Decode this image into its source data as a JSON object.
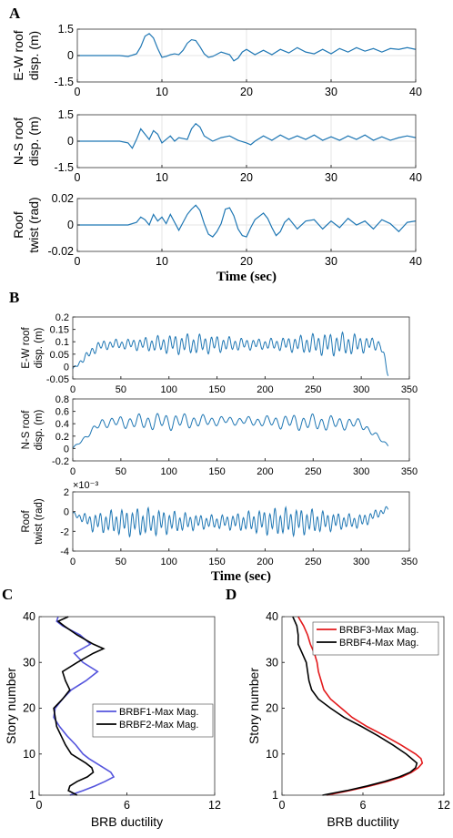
{
  "figure": {
    "panel_labels": [
      "A",
      "B",
      "C",
      "D"
    ],
    "xlabel_time": "Time (sec)"
  },
  "colors": {
    "series_blue": "#1f77b4",
    "brbf1": "#5555dd",
    "brbf2": "#000000",
    "brbf3": "#e31a1c",
    "brbf4": "#000000",
    "axis": "#333333",
    "grid": "#e6e6e6"
  },
  "chart_data": [
    {
      "id": "A1",
      "panel": "A",
      "type": "line",
      "ylabel_lines": [
        "E-W roof",
        "disp. (m)"
      ],
      "xlim": [
        0,
        40
      ],
      "ylim": [
        -1.5,
        1.5
      ],
      "xticks": [
        0,
        10,
        20,
        30,
        40
      ],
      "yticks": [
        -1.5,
        0,
        1.5
      ],
      "ytick_labels": [
        "-1.5",
        "0",
        "1.5"
      ],
      "grid": true,
      "x": [
        0,
        5,
        6,
        7,
        7.5,
        8,
        8.5,
        9,
        9.5,
        10,
        10.5,
        11,
        11.5,
        12,
        12.5,
        13,
        13.5,
        14,
        14.5,
        15,
        15.5,
        16,
        17,
        18,
        18.5,
        19,
        19.5,
        20,
        21,
        22,
        23,
        24,
        25,
        26,
        27,
        28,
        29,
        30,
        31,
        32,
        33,
        34,
        35,
        36,
        37,
        38,
        39,
        40
      ],
      "y": [
        0,
        0,
        -0.05,
        0.1,
        0.5,
        1.1,
        1.25,
        1.0,
        0.4,
        -0.1,
        -0.05,
        0.05,
        0.1,
        0.05,
        0.3,
        0.7,
        0.9,
        0.85,
        0.5,
        0.1,
        -0.1,
        -0.05,
        0.2,
        0.05,
        -0.3,
        -0.15,
        0.2,
        0.35,
        0.05,
        0.3,
        0.05,
        0.35,
        0.15,
        0.45,
        0.2,
        0.1,
        0.35,
        0.1,
        0.4,
        0.2,
        0.45,
        0.25,
        0.4,
        0.2,
        0.4,
        0.35,
        0.45,
        0.35
      ]
    },
    {
      "id": "A2",
      "panel": "A",
      "type": "line",
      "ylabel_lines": [
        "N-S roof",
        "disp. (m)"
      ],
      "xlim": [
        0,
        40
      ],
      "ylim": [
        -1.5,
        1.5
      ],
      "xticks": [
        0,
        10,
        20,
        30,
        40
      ],
      "yticks": [
        -1.5,
        0,
        1.5
      ],
      "ytick_labels": [
        "-1.5",
        "0",
        "1.5"
      ],
      "grid": true,
      "x": [
        0,
        5,
        6,
        6.5,
        7,
        7.5,
        8,
        8.5,
        9,
        9.5,
        10,
        11,
        11.5,
        12,
        13,
        13.5,
        14,
        14.5,
        15,
        16,
        17,
        18,
        19,
        20,
        20.5,
        21,
        22,
        23,
        24,
        25,
        26,
        27,
        28,
        29,
        30,
        31,
        32,
        33,
        34,
        35,
        36,
        37,
        38,
        39,
        40
      ],
      "y": [
        0,
        0,
        -0.1,
        -0.4,
        0.1,
        0.7,
        0.4,
        0.1,
        0.6,
        0.4,
        -0.1,
        0.3,
        0.0,
        0.2,
        0.1,
        0.7,
        1.0,
        0.8,
        0.3,
        0.0,
        0.2,
        0.3,
        0.05,
        -0.1,
        -0.2,
        0.0,
        0.3,
        0.05,
        0.35,
        0.1,
        0.3,
        0.1,
        0.35,
        0.05,
        0.25,
        0.05,
        0.3,
        0.1,
        0.35,
        0.05,
        0.25,
        0.05,
        0.2,
        0.3,
        0.2
      ]
    },
    {
      "id": "A3",
      "panel": "A",
      "type": "line",
      "ylabel_lines": [
        "Roof",
        "twist (rad)"
      ],
      "xlim": [
        0,
        40
      ],
      "ylim": [
        -0.02,
        0.02
      ],
      "xticks": [
        0,
        10,
        20,
        30,
        40
      ],
      "yticks": [
        -0.02,
        0,
        0.02
      ],
      "ytick_labels": [
        "-0.02",
        "0",
        "0.02"
      ],
      "grid": true,
      "xlabel_key": "xlabel_time",
      "x": [
        0,
        5,
        6,
        7,
        7.5,
        8,
        8.5,
        9,
        9.5,
        10,
        10.5,
        11,
        12,
        12.5,
        13,
        13.5,
        14,
        14.5,
        15,
        15.5,
        16,
        16.5,
        17,
        17.5,
        18,
        18.5,
        19,
        19.5,
        20,
        20.5,
        21,
        22,
        22.5,
        23,
        23.5,
        24,
        24.5,
        25,
        26,
        27,
        28,
        29,
        30,
        31,
        32,
        33,
        34,
        35,
        36,
        37,
        38,
        39,
        40
      ],
      "y": [
        0,
        0,
        0,
        0.002,
        0.006,
        0.004,
        0.0,
        0.008,
        0.003,
        0.006,
        0.001,
        0.008,
        -0.004,
        0.002,
        0.008,
        0.012,
        0.015,
        0.011,
        0.001,
        -0.007,
        -0.009,
        -0.005,
        0.001,
        0.012,
        0.013,
        0.007,
        -0.003,
        -0.008,
        -0.009,
        -0.002,
        0.004,
        0.009,
        0.005,
        -0.002,
        -0.008,
        -0.005,
        0.002,
        0.005,
        -0.003,
        0.003,
        0.004,
        -0.003,
        0.003,
        -0.002,
        0.005,
        0.0,
        0.003,
        -0.003,
        0.004,
        0.001,
        -0.005,
        0.002,
        0.003
      ]
    },
    {
      "id": "B1",
      "panel": "B",
      "type": "line",
      "dense": true,
      "ylabel_lines": [
        "E-W roof",
        "disp. (m)"
      ],
      "xlim": [
        0,
        350
      ],
      "ylim": [
        -0.05,
        0.2
      ],
      "xticks": [
        0,
        50,
        100,
        150,
        200,
        250,
        300,
        350
      ],
      "yticks": [
        -0.05,
        0,
        0.05,
        0.1,
        0.15,
        0.2
      ],
      "ytick_labels": [
        "-0.05",
        "0",
        "0.05",
        "0.1",
        "0.15",
        "0.2"
      ],
      "grid": false,
      "gen": {
        "duration": 328,
        "base": [
          [
            0,
            -0.01
          ],
          [
            25,
            0.08
          ],
          [
            40,
            0.09
          ],
          [
            320,
            0.09
          ],
          [
            328,
            -0.03
          ]
        ],
        "amp": [
          [
            0,
            0.005
          ],
          [
            25,
            0.04
          ],
          [
            290,
            0.05
          ],
          [
            328,
            0.03
          ]
        ],
        "period": 6.2
      }
    },
    {
      "id": "B2",
      "panel": "B",
      "type": "line",
      "dense": true,
      "ylabel_lines": [
        "N-S roof",
        "disp. (m)"
      ],
      "xlim": [
        0,
        350
      ],
      "ylim": [
        -0.2,
        0.8
      ],
      "xticks": [
        0,
        50,
        100,
        150,
        200,
        250,
        300,
        350
      ],
      "yticks": [
        -0.2,
        0,
        0.2,
        0.4,
        0.6,
        0.8
      ],
      "ytick_labels": [
        "-0.2",
        "0",
        "0.2",
        "0.4",
        "0.6",
        "0.8"
      ],
      "grid": false,
      "gen": {
        "duration": 328,
        "base": [
          [
            0,
            0.0
          ],
          [
            30,
            0.42
          ],
          [
            160,
            0.45
          ],
          [
            300,
            0.4
          ],
          [
            328,
            0.05
          ]
        ],
        "amp": [
          [
            0,
            0.02
          ],
          [
            30,
            0.15
          ],
          [
            300,
            0.14
          ],
          [
            328,
            0.05
          ]
        ],
        "period": 9.5
      }
    },
    {
      "id": "B3",
      "panel": "B",
      "type": "line",
      "dense": true,
      "ylabel_lines": [
        "Roof",
        "twist (rad)"
      ],
      "exponent_label": "×10⁻³",
      "xlim": [
        0,
        350
      ],
      "ylim": [
        -4,
        2
      ],
      "xticks": [
        0,
        50,
        100,
        150,
        200,
        250,
        300,
        350
      ],
      "yticks": [
        -4,
        -2,
        0,
        2
      ],
      "ytick_labels": [
        "-4",
        "-2",
        "0",
        "2"
      ],
      "grid": false,
      "xlabel_key": "xlabel_time",
      "gen": {
        "duration": 328,
        "base": [
          [
            0,
            -0.2
          ],
          [
            20,
            -1.1
          ],
          [
            300,
            -1.0
          ],
          [
            328,
            0.3
          ]
        ],
        "amp": [
          [
            0,
            0.3
          ],
          [
            20,
            1.5
          ],
          [
            300,
            1.5
          ],
          [
            328,
            0.4
          ]
        ],
        "period": 5.5
      }
    },
    {
      "id": "C",
      "panel": "C",
      "type": "line",
      "orientation": "vertical",
      "xlabel": "BRB ductility",
      "ylabel": "Story number",
      "xlim": [
        0,
        12
      ],
      "ylim": [
        1,
        40
      ],
      "xticks": [
        0,
        6,
        12
      ],
      "yticks": [
        1,
        10,
        20,
        30,
        40
      ],
      "grid": false,
      "legend_position": "center-right",
      "series": [
        {
          "name": "BRBF1-Max Mag.",
          "color_key": "brbf1",
          "story": [
            1,
            2,
            3,
            4,
            5,
            6,
            7,
            8,
            9,
            10,
            12,
            14,
            16,
            18,
            20,
            22,
            24,
            26,
            28,
            30,
            32,
            34,
            36,
            38,
            39,
            40
          ],
          "ductility": [
            2.1,
            3.0,
            3.8,
            4.5,
            5.1,
            4.9,
            4.4,
            3.9,
            3.4,
            3.0,
            2.5,
            1.9,
            1.4,
            1.0,
            1.1,
            1.6,
            2.2,
            3.2,
            4.0,
            3.0,
            2.4,
            3.5,
            2.8,
            1.6,
            1.2,
            1.3
          ]
        },
        {
          "name": "BRBF2-Max Mag.",
          "color_key": "brbf2",
          "story": [
            1,
            2,
            3,
            4,
            5,
            6,
            7,
            8,
            9,
            10,
            12,
            14,
            16,
            18,
            20,
            22,
            24,
            26,
            28,
            30,
            32,
            33,
            34,
            36,
            38,
            39,
            40
          ],
          "ductility": [
            2.6,
            2.0,
            2.1,
            2.6,
            3.3,
            3.7,
            3.6,
            3.2,
            2.7,
            2.2,
            1.8,
            1.5,
            1.2,
            1.1,
            1.0,
            1.6,
            2.1,
            1.8,
            1.6,
            2.6,
            3.7,
            4.4,
            3.7,
            2.6,
            1.7,
            1.3,
            2.0
          ]
        }
      ]
    },
    {
      "id": "D",
      "panel": "D",
      "type": "line",
      "orientation": "vertical",
      "xlabel": "BRB ductility",
      "ylabel": "Story number",
      "xlim": [
        0,
        12
      ],
      "ylim": [
        1,
        40
      ],
      "xticks": [
        0,
        6,
        12
      ],
      "yticks": [
        1,
        10,
        20,
        30,
        40
      ],
      "grid": false,
      "legend_position": "top-right",
      "series": [
        {
          "name": "BRBF3-Max Mag.",
          "color_key": "brbf3",
          "story": [
            1,
            2,
            3,
            4,
            5,
            6,
            7,
            8,
            9,
            10,
            12,
            14,
            16,
            18,
            20,
            22,
            24,
            26,
            28,
            30,
            32,
            34,
            36,
            38,
            40
          ],
          "ductility": [
            3.3,
            5.0,
            6.5,
            7.8,
            8.9,
            9.6,
            10.1,
            10.4,
            10.3,
            9.9,
            8.8,
            7.6,
            6.3,
            5.2,
            4.4,
            3.6,
            3.1,
            2.9,
            2.7,
            2.6,
            2.4,
            2.1,
            1.9,
            1.6,
            1.2
          ]
        },
        {
          "name": "BRBF4-Max Mag.",
          "color_key": "brbf4",
          "story": [
            1,
            2,
            3,
            4,
            5,
            6,
            7,
            8,
            9,
            10,
            12,
            14,
            16,
            18,
            20,
            22,
            24,
            26,
            28,
            30,
            32,
            34,
            36,
            38,
            40
          ],
          "ductility": [
            3.0,
            4.8,
            6.3,
            7.6,
            8.7,
            9.5,
            9.9,
            10.0,
            9.6,
            9.2,
            8.2,
            7.1,
            5.9,
            4.6,
            3.6,
            2.7,
            2.2,
            2.0,
            1.9,
            1.8,
            1.5,
            1.2,
            1.2,
            1.1,
            0.8
          ]
        }
      ]
    }
  ]
}
